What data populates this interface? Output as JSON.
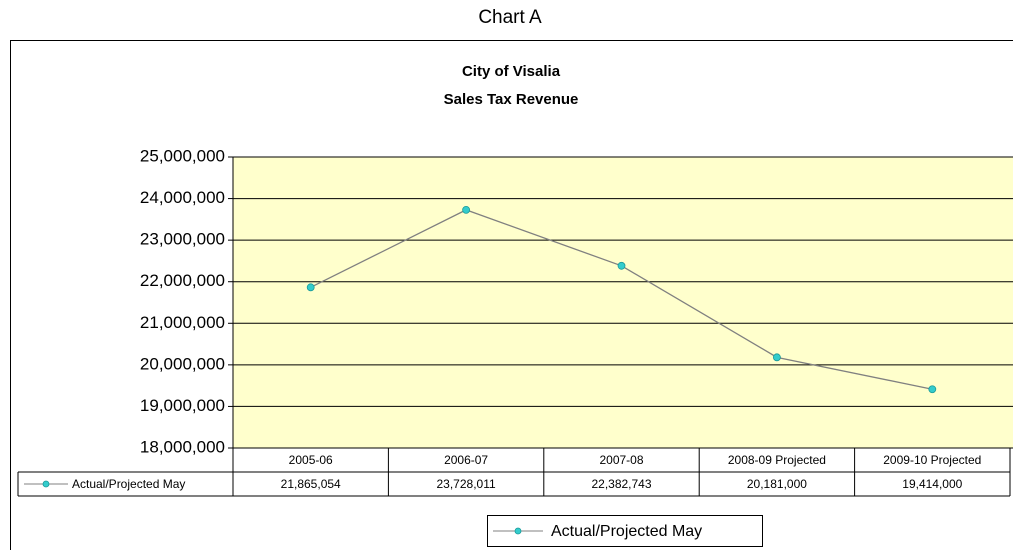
{
  "heading": "Chart A",
  "chart_data": {
    "type": "line",
    "title": "City of Visalia",
    "subtitle": "Sales Tax Revenue",
    "categories": [
      "2005-06",
      "2006-07",
      "2007-08",
      "2008-09 Projected",
      "2009-10 Projected"
    ],
    "series": [
      {
        "name": "Actual/Projected May",
        "color": "#808080",
        "marker_color": "#33cccc",
        "values": [
          21865054,
          23728011,
          22382743,
          20181000,
          19414000
        ],
        "value_labels": [
          "21,865,054",
          "23,728,011",
          "22,382,743",
          "20,181,000",
          "19,414,000"
        ]
      }
    ],
    "ylim": [
      18000000,
      25000000
    ],
    "yticks": [
      {
        "value": 18000000,
        "label": "18,000,000"
      },
      {
        "value": 19000000,
        "label": "19,000,000"
      },
      {
        "value": 20000000,
        "label": "20,000,000"
      },
      {
        "value": 21000000,
        "label": "21,000,000"
      },
      {
        "value": 22000000,
        "label": "22,000,000"
      },
      {
        "value": 23000000,
        "label": "23,000,000"
      },
      {
        "value": 24000000,
        "label": "24,000,000"
      },
      {
        "value": 25000000,
        "label": "25,000,000"
      }
    ],
    "grid": true,
    "plot_background": "#ffffcc",
    "legend": "bottom",
    "data_table": true
  }
}
